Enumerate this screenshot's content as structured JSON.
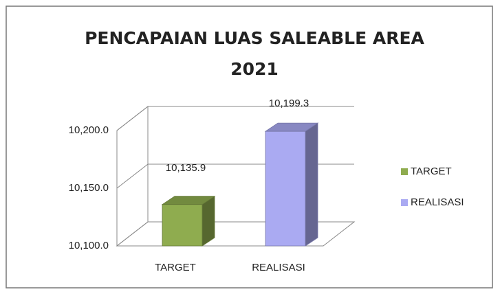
{
  "chart_data": {
    "type": "bar3d",
    "title": "PENCAPAIAN LUAS SALEABLE AREA",
    "subtitle": "2021",
    "categories": [
      "TARGET",
      "REALISASI"
    ],
    "values": [
      10135.9,
      10199.3
    ],
    "value_labels": [
      "10,135.9",
      "10,199.3"
    ],
    "colors": [
      "#8fac4f",
      "#aaaaf2"
    ],
    "ylim": [
      10100,
      10200
    ],
    "yticks": [
      {
        "value": 10100,
        "label": "10,100.0"
      },
      {
        "value": 10150,
        "label": "10,150.0"
      },
      {
        "value": 10200,
        "label": "10,200.0"
      }
    ],
    "grid": true,
    "legend": "right"
  }
}
